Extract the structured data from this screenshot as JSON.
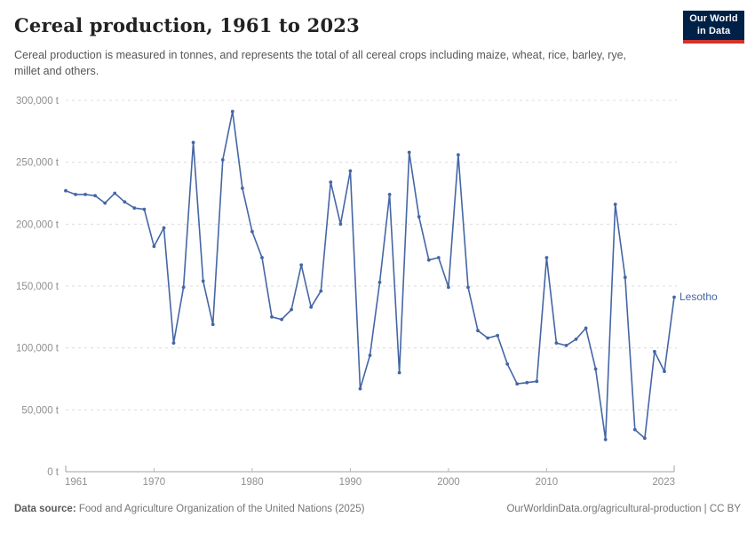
{
  "header": {
    "logo_line1": "Our World",
    "logo_line2": "in Data"
  },
  "chart_data": {
    "type": "line",
    "title": "Cereal production, 1961 to 2023",
    "subtitle": "Cereal production is measured in tonnes, and represents the total of all cereal crops including maize, wheat, rice, barley, rye, millet and others.",
    "entity_label": "Lesotho",
    "xlabel": "",
    "ylabel": "",
    "xlim": [
      1961,
      2023
    ],
    "ylim": [
      0,
      300000
    ],
    "grid": true,
    "legend_position": "right-of-line-end",
    "line_color": "#4566a5",
    "x_ticks": [
      1961,
      1970,
      1980,
      1990,
      2000,
      2010,
      2023
    ],
    "y_ticks": [
      0,
      50000,
      100000,
      150000,
      200000,
      250000,
      300000
    ],
    "y_tick_suffix": " t",
    "years": [
      1961,
      1962,
      1963,
      1964,
      1965,
      1966,
      1967,
      1968,
      1969,
      1970,
      1971,
      1972,
      1973,
      1974,
      1975,
      1976,
      1977,
      1978,
      1979,
      1980,
      1981,
      1982,
      1983,
      1984,
      1985,
      1986,
      1987,
      1988,
      1989,
      1990,
      1991,
      1992,
      1993,
      1994,
      1995,
      1996,
      1997,
      1998,
      1999,
      2000,
      2001,
      2002,
      2003,
      2004,
      2005,
      2006,
      2007,
      2008,
      2009,
      2010,
      2011,
      2012,
      2013,
      2014,
      2015,
      2016,
      2017,
      2018,
      2019,
      2020,
      2021,
      2022,
      2023
    ],
    "values": [
      227000,
      224000,
      224000,
      223000,
      217000,
      225000,
      218000,
      213000,
      212000,
      182000,
      197000,
      104000,
      149000,
      266000,
      154000,
      119000,
      252000,
      291000,
      229000,
      194000,
      173000,
      125000,
      123000,
      131000,
      167000,
      133000,
      146000,
      234000,
      200000,
      243000,
      67000,
      94000,
      153000,
      224000,
      80000,
      258000,
      206000,
      171000,
      173000,
      149000,
      256000,
      149000,
      114000,
      108000,
      110000,
      87000,
      71000,
      72000,
      73000,
      173000,
      104000,
      102000,
      107000,
      116000,
      83000,
      26000,
      216000,
      157000,
      34000,
      27000,
      97000,
      81000,
      141000
    ]
  },
  "footer": {
    "datasource_label": "Data source:",
    "datasource_text": " Food and Agriculture Organization of the United Nations (2025)",
    "credit": "OurWorldinData.org/agricultural-production | CC BY"
  }
}
